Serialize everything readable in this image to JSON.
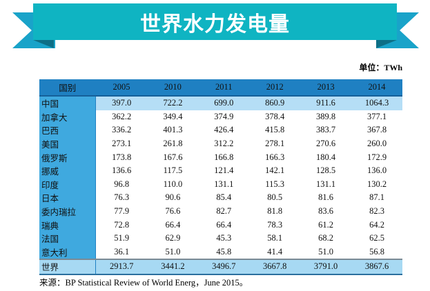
{
  "title": "世界水力发电量",
  "unit": "单位：TWh",
  "source": "来源：BP Statistical Review of World Energ，June 2015。",
  "colors": {
    "ribbon": "#0fb4c2",
    "header": "#1f80c2",
    "country_col": "#3fa9df",
    "highlight": "#b5def6"
  },
  "chart_data": {
    "type": "table",
    "columns": [
      "国别",
      "2005",
      "2010",
      "2011",
      "2012",
      "2013",
      "2014"
    ],
    "rows": [
      [
        "中国",
        "397.0",
        "722.2",
        "699.0",
        "860.9",
        "911.6",
        "1064.3"
      ],
      [
        "加拿大",
        "362.2",
        "349.4",
        "374.9",
        "378.4",
        "389.8",
        "377.1"
      ],
      [
        "巴西",
        "336.2",
        "401.3",
        "426.4",
        "415.8",
        "383.7",
        "367.8"
      ],
      [
        "美国",
        "273.1",
        "261.8",
        "312.2",
        "278.1",
        "270.6",
        "260.0"
      ],
      [
        "俄罗斯",
        "173.8",
        "167.6",
        "166.8",
        "166.3",
        "180.4",
        "172.9"
      ],
      [
        "挪威",
        "136.6",
        "117.5",
        "121.4",
        "142.1",
        "128.5",
        "136.0"
      ],
      [
        "印度",
        "96.8",
        "110.0",
        "131.1",
        "115.3",
        "131.1",
        "130.2"
      ],
      [
        "日本",
        "76.3",
        "90.6",
        "85.4",
        "80.5",
        "81.6",
        "87.1"
      ],
      [
        "委内瑞拉",
        "77.9",
        "76.6",
        "82.7",
        "81.8",
        "83.6",
        "82.3"
      ],
      [
        "瑞典",
        "72.8",
        "66.4",
        "66.4",
        "78.3",
        "61.2",
        "64.2"
      ],
      [
        "法国",
        "51.9",
        "62.9",
        "45.3",
        "58.1",
        "68.2",
        "62.5"
      ],
      [
        "意大利",
        "36.1",
        "51.0",
        "45.8",
        "41.4",
        "51.0",
        "56.8"
      ]
    ],
    "total": [
      "世界",
      "2913.7",
      "3441.2",
      "3496.7",
      "3667.8",
      "3791.0",
      "3867.6"
    ]
  }
}
